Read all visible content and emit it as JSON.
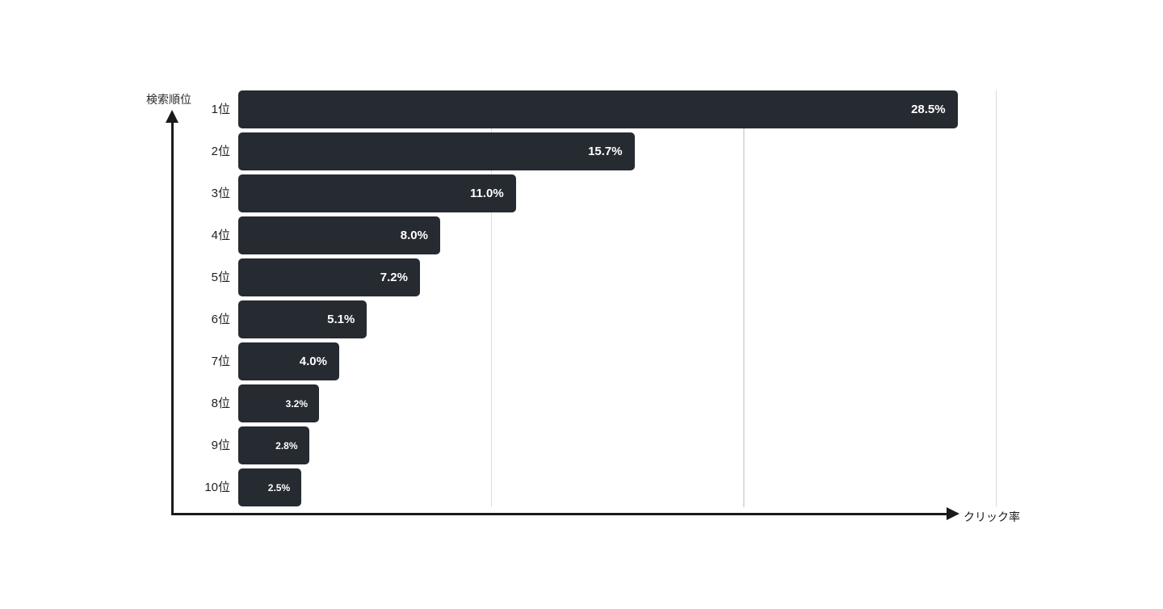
{
  "chart_data": {
    "type": "bar",
    "orientation": "horizontal",
    "y_axis_label": "検索順位",
    "x_axis_label": "クリック率",
    "categories": [
      "1位",
      "2位",
      "3位",
      "4位",
      "5位",
      "6位",
      "7位",
      "8位",
      "9位",
      "10位"
    ],
    "values": [
      28.5,
      15.7,
      11.0,
      8.0,
      7.2,
      5.1,
      4.0,
      3.2,
      2.8,
      2.5
    ],
    "value_labels": [
      "28.5%",
      "15.7%",
      "11.0%",
      "8.0%",
      "7.2%",
      "5.1%",
      "4.0%",
      "3.2%",
      "2.8%",
      "2.5%"
    ],
    "xlim": [
      0,
      30
    ],
    "gridlines_percent": [
      10,
      20,
      30
    ],
    "legend": "none",
    "grid": "vertical",
    "colors": {
      "bar": "#262a31",
      "value_label": "#ffffff",
      "gridline": "#dcdcdc",
      "axis": "#1a1a1a",
      "background": "#ffffff"
    }
  }
}
